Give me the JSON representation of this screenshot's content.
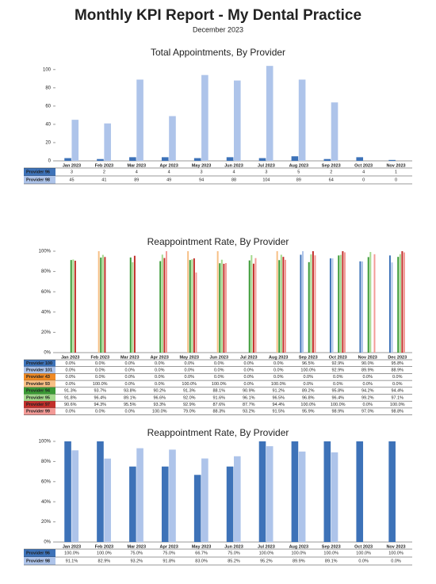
{
  "header": {
    "title": "Monthly KPI Report - My Dental Practice",
    "subtitle": "December 2023"
  },
  "chart_data": [
    {
      "type": "bar",
      "title": "Total Appointments, By Provider",
      "categories": [
        "Jan 2023",
        "Feb 2023",
        "Mar 2023",
        "Apr 2023",
        "May 2023",
        "Jun 2023",
        "Jul 2023",
        "Aug 2023",
        "Sep 2023",
        "Oct 2023",
        "Nov 2023"
      ],
      "series": [
        {
          "name": "Provider 96",
          "color": "#3d72b8",
          "values": [
            3,
            2,
            4,
            4,
            3,
            4,
            3,
            5,
            2,
            4,
            1
          ]
        },
        {
          "name": "Provider 98",
          "color": "#aec4ea",
          "values": [
            45,
            41,
            89,
            49,
            94,
            88,
            104,
            89,
            64,
            0,
            0
          ]
        }
      ],
      "ylim": [
        0,
        105
      ],
      "yticks": [
        0,
        20,
        40,
        60,
        80,
        100
      ],
      "grid": false
    },
    {
      "type": "bar",
      "title": "Reappointment Rate, By Provider",
      "categories": [
        "Jan 2023",
        "Feb 2023",
        "Mar 2023",
        "Apr 2023",
        "May 2023",
        "Jun 2023",
        "Jul 2023",
        "Aug 2023",
        "Sep 2023",
        "Oct 2023",
        "Nov 2023",
        "Dec 2023"
      ],
      "series": [
        {
          "name": "Provider 100",
          "color": "#3d72b8",
          "values": [
            0,
            0,
            0,
            0,
            0,
            0,
            0,
            0,
            96.5,
            92.9,
            90.0,
            95.8
          ],
          "value_labels": [
            "0.0%",
            "0.0%",
            "0.0%",
            "0.0%",
            "0.0%",
            "0.0%",
            "0.0%",
            "0.0%",
            "96.5%",
            "92.9%",
            "90.0%",
            "95.8%"
          ]
        },
        {
          "name": "Provider 101",
          "color": "#aec4ea",
          "values": [
            0,
            0,
            0,
            0,
            0,
            0,
            0,
            0,
            100.0,
            92.9,
            89.9,
            88.9
          ],
          "value_labels": [
            "0.0%",
            "0.0%",
            "0.0%",
            "0.0%",
            "0.0%",
            "0.0%",
            "0.0%",
            "0.0%",
            "100.0%",
            "92.9%",
            "89.9%",
            "88.9%"
          ]
        },
        {
          "name": "Provider 43",
          "color": "#ef8a25",
          "values": [
            0,
            0,
            0,
            0,
            0,
            0,
            0,
            0,
            0,
            0,
            0,
            0
          ],
          "value_labels": [
            "0.0%",
            "0.0%",
            "0.0%",
            "0.0%",
            "0.0%",
            "0.0%",
            "0.0%",
            "0.0%",
            "0.0%",
            "0.0%",
            "0.0%",
            "0.0%"
          ]
        },
        {
          "name": "Provider 93",
          "color": "#f7bf85",
          "values": [
            0,
            100.0,
            0,
            0,
            100.0,
            100.0,
            0,
            100.0,
            0,
            0,
            0,
            0
          ],
          "value_labels": [
            "0.0%",
            "100.0%",
            "0.0%",
            "0.0%",
            "100.0%",
            "100.0%",
            "0.0%",
            "100.0%",
            "0.0%",
            "0.0%",
            "0.0%",
            "0.0%"
          ]
        },
        {
          "name": "Provider 94",
          "color": "#3a9a35",
          "values": [
            91.3,
            93.7,
            93.8,
            90.2,
            91.3,
            88.1,
            90.9,
            91.2,
            89.2,
            95.8,
            94.2,
            94.4
          ],
          "value_labels": [
            "91.3%",
            "93.7%",
            "93.8%",
            "90.2%",
            "91.3%",
            "88.1%",
            "90.9%",
            "91.2%",
            "89.2%",
            "95.8%",
            "94.2%",
            "94.4%"
          ]
        },
        {
          "name": "Provider 95",
          "color": "#a3d98c",
          "values": [
            91.8,
            96.4,
            89.1,
            96.6,
            92.0,
            91.6,
            96.1,
            96.5,
            96.8,
            96.4,
            99.2,
            97.1
          ],
          "value_labels": [
            "91.8%",
            "96.4%",
            "89.1%",
            "96.6%",
            "92.0%",
            "91.6%",
            "96.1%",
            "96.5%",
            "96.8%",
            "96.4%",
            "99.2%",
            "97.1%"
          ]
        },
        {
          "name": "Provider 97",
          "color": "#c22f2a",
          "values": [
            90.6,
            94.3,
            95.5,
            93.3,
            92.9,
            87.6,
            87.7,
            94.4,
            100.0,
            100.0,
            0,
            100.0
          ],
          "value_labels": [
            "90.6%",
            "94.3%",
            "95.5%",
            "93.3%",
            "92.9%",
            "87.6%",
            "87.7%",
            "94.4%",
            "100.0%",
            "100.0%",
            "0.0%",
            "100.0%"
          ]
        },
        {
          "name": "Provider 99",
          "color": "#f39a96",
          "values": [
            0,
            0,
            0,
            100.0,
            79.0,
            88.3,
            93.2,
            91.5,
            95.9,
            98.9,
            97.0,
            98.8
          ],
          "value_labels": [
            "0.0%",
            "0.0%",
            "0.0%",
            "100.0%",
            "79.0%",
            "88.3%",
            "93.2%",
            "91.5%",
            "95.9%",
            "98.9%",
            "97.0%",
            "98.8%"
          ]
        }
      ],
      "ylim": [
        0,
        100
      ],
      "yticks": [
        {
          "value": 0,
          "label": "0%"
        },
        {
          "value": 20,
          "label": "20%"
        },
        {
          "value": 40,
          "label": "40%"
        },
        {
          "value": 60,
          "label": "60%"
        },
        {
          "value": 80,
          "label": "80%"
        },
        {
          "value": 100,
          "label": "100%"
        }
      ],
      "grid": false
    },
    {
      "type": "bar",
      "title": "Reappointment Rate, By Provider",
      "categories": [
        "Jan 2023",
        "Feb 2023",
        "Mar 2023",
        "Apr 2023",
        "May 2023",
        "Jun 2023",
        "Jul 2023",
        "Aug 2023",
        "Sep 2023",
        "Oct 2023",
        "Nov 2023"
      ],
      "series": [
        {
          "name": "Provider 96",
          "color": "#3d72b8",
          "values": [
            100.0,
            100.0,
            75.0,
            75.0,
            66.7,
            75.0,
            100.0,
            100.0,
            100.0,
            100.0,
            100.0
          ],
          "value_labels": [
            "100.0%",
            "100.0%",
            "75.0%",
            "75.0%",
            "66.7%",
            "75.0%",
            "100.0%",
            "100.0%",
            "100.0%",
            "100.0%",
            "100.0%"
          ]
        },
        {
          "name": "Provider 98",
          "color": "#aec4ea",
          "values": [
            91.1,
            82.9,
            93.2,
            91.8,
            83.0,
            85.2,
            95.2,
            89.9,
            89.1,
            0,
            0
          ],
          "value_labels": [
            "91.1%",
            "82.9%",
            "93.2%",
            "91.8%",
            "83.0%",
            "85.2%",
            "95.2%",
            "89.9%",
            "89.1%",
            "0.0%",
            "0.0%"
          ]
        }
      ],
      "ylim": [
        0,
        100
      ],
      "yticks": [
        {
          "value": 0,
          "label": "0%"
        },
        {
          "value": 20,
          "label": "20%"
        },
        {
          "value": 40,
          "label": "40%"
        },
        {
          "value": 60,
          "label": "60%"
        },
        {
          "value": 80,
          "label": "80%"
        },
        {
          "value": 100,
          "label": "100%"
        }
      ],
      "grid": false
    }
  ]
}
